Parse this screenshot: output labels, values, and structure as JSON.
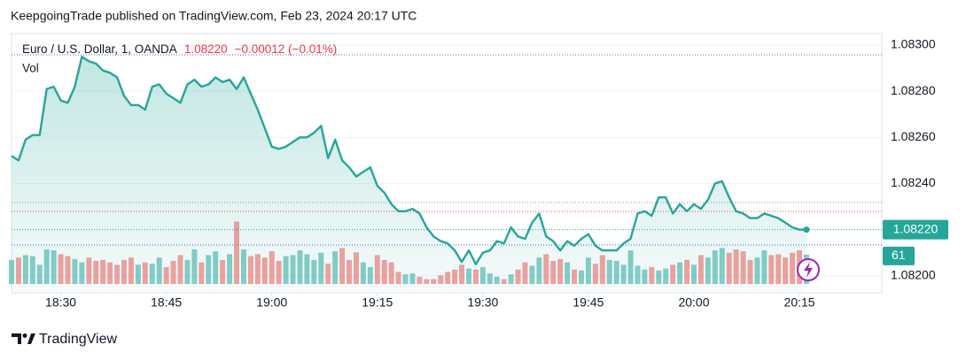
{
  "chart_data": {
    "type": "line",
    "title": "KeepgoingTrade published on TradingView.com, Feb 23, 2024 20:17 UTC",
    "symbol": "Euro / U.S. Dollar, 1, OANDA",
    "price_label": "1.08220",
    "change_label": "−0.00012 (−0.01%)",
    "volume_label": "Vol",
    "brand": "TradingView",
    "color": "#26a69a",
    "up_color": "#26a69a",
    "down_color": "#ef5350",
    "categories": [
      null,
      null,
      null,
      null,
      null,
      null,
      null,
      "18:30",
      null,
      null,
      null,
      null,
      null,
      null,
      null,
      null,
      null,
      null,
      null,
      null,
      null,
      null,
      "18:45",
      null,
      null,
      null,
      null,
      null,
      null,
      null,
      null,
      null,
      null,
      null,
      null,
      null,
      null,
      "19:00",
      null,
      null,
      null,
      null,
      null,
      null,
      null,
      null,
      null,
      null,
      null,
      null,
      null,
      null,
      "19:15",
      null,
      null,
      null,
      null,
      null,
      null,
      null,
      null,
      null,
      null,
      null,
      null,
      null,
      null,
      "19:30",
      null,
      null,
      null,
      null,
      null,
      null,
      null,
      null,
      null,
      null,
      null,
      null,
      null,
      null,
      "19:45",
      null,
      null,
      null,
      null,
      null,
      null,
      null,
      null,
      null,
      null,
      null,
      null,
      null,
      null,
      "20:00",
      null,
      null,
      null,
      null,
      null,
      null,
      null,
      null,
      null,
      null,
      null,
      null,
      null,
      null,
      "20:15",
      null
    ],
    "values": [
      1.08252,
      1.0825,
      1.08259,
      1.08261,
      1.08261,
      1.08281,
      1.08282,
      1.08276,
      1.08275,
      1.08282,
      1.08295,
      1.08293,
      1.08292,
      1.08289,
      1.08288,
      1.08286,
      1.08278,
      1.08274,
      1.08274,
      1.08272,
      1.08282,
      1.08283,
      1.08279,
      1.08277,
      1.08275,
      1.08283,
      1.08285,
      1.08282,
      1.08283,
      1.08286,
      1.08284,
      1.08285,
      1.08281,
      1.08286,
      1.08279,
      1.08272,
      1.08264,
      1.08256,
      1.08255,
      1.08256,
      1.08258,
      1.0826,
      1.0826,
      1.08262,
      1.08265,
      1.08251,
      1.08259,
      1.0825,
      1.08247,
      1.08243,
      1.08245,
      1.08247,
      1.08239,
      1.08236,
      1.08231,
      1.08228,
      1.08228,
      1.08229,
      1.08227,
      1.08221,
      1.08217,
      1.08215,
      1.08214,
      1.08211,
      1.08206,
      1.08211,
      1.08205,
      1.0821,
      1.08211,
      1.08215,
      1.08214,
      1.08221,
      1.08217,
      1.08216,
      1.08223,
      1.08227,
      1.08217,
      1.08215,
      1.08211,
      1.08215,
      1.08213,
      1.08216,
      1.08218,
      1.08213,
      1.08211,
      1.08211,
      1.08211,
      1.08214,
      1.08216,
      1.08227,
      1.08228,
      1.08226,
      1.08234,
      1.08234,
      1.08227,
      1.08231,
      1.08228,
      1.08231,
      1.08229,
      1.08233,
      1.0824,
      1.08241,
      1.08234,
      1.08228,
      1.08227,
      1.08225,
      1.08225,
      1.08227,
      1.08226,
      1.08225,
      1.08223,
      1.08221,
      1.0822,
      1.0822
    ],
    "volumes": [
      50,
      55,
      60,
      58,
      40,
      72,
      70,
      62,
      58,
      52,
      45,
      55,
      48,
      50,
      45,
      40,
      50,
      55,
      40,
      45,
      42,
      55,
      35,
      48,
      60,
      50,
      72,
      45,
      60,
      68,
      50,
      62,
      130,
      72,
      58,
      62,
      55,
      68,
      48,
      58,
      60,
      70,
      62,
      50,
      65,
      42,
      68,
      75,
      50,
      66,
      45,
      35,
      60,
      50,
      45,
      25,
      20,
      22,
      15,
      10,
      10,
      18,
      25,
      30,
      40,
      32,
      30,
      35,
      22,
      15,
      10,
      20,
      30,
      45,
      38,
      55,
      62,
      48,
      52,
      45,
      30,
      28,
      55,
      42,
      60,
      50,
      48,
      40,
      70,
      38,
      30,
      35,
      28,
      32,
      40,
      45,
      50,
      40,
      60,
      55,
      70,
      75,
      65,
      72,
      68,
      50,
      55,
      70,
      60,
      62,
      55,
      65,
      70,
      61
    ],
    "volume_ylim": [
      0,
      166
    ],
    "ylim": [
      1.08193,
      1.08305
    ],
    "yticks": [
      {
        "value": 1.083,
        "label": "1.08300"
      },
      {
        "value": 1.0828,
        "label": "1.08280"
      },
      {
        "value": 1.0826,
        "label": "1.08260"
      },
      {
        "value": 1.0824,
        "label": "1.08240"
      },
      {
        "value": 1.082,
        "label": "1.08200"
      }
    ],
    "grid": true
  }
}
